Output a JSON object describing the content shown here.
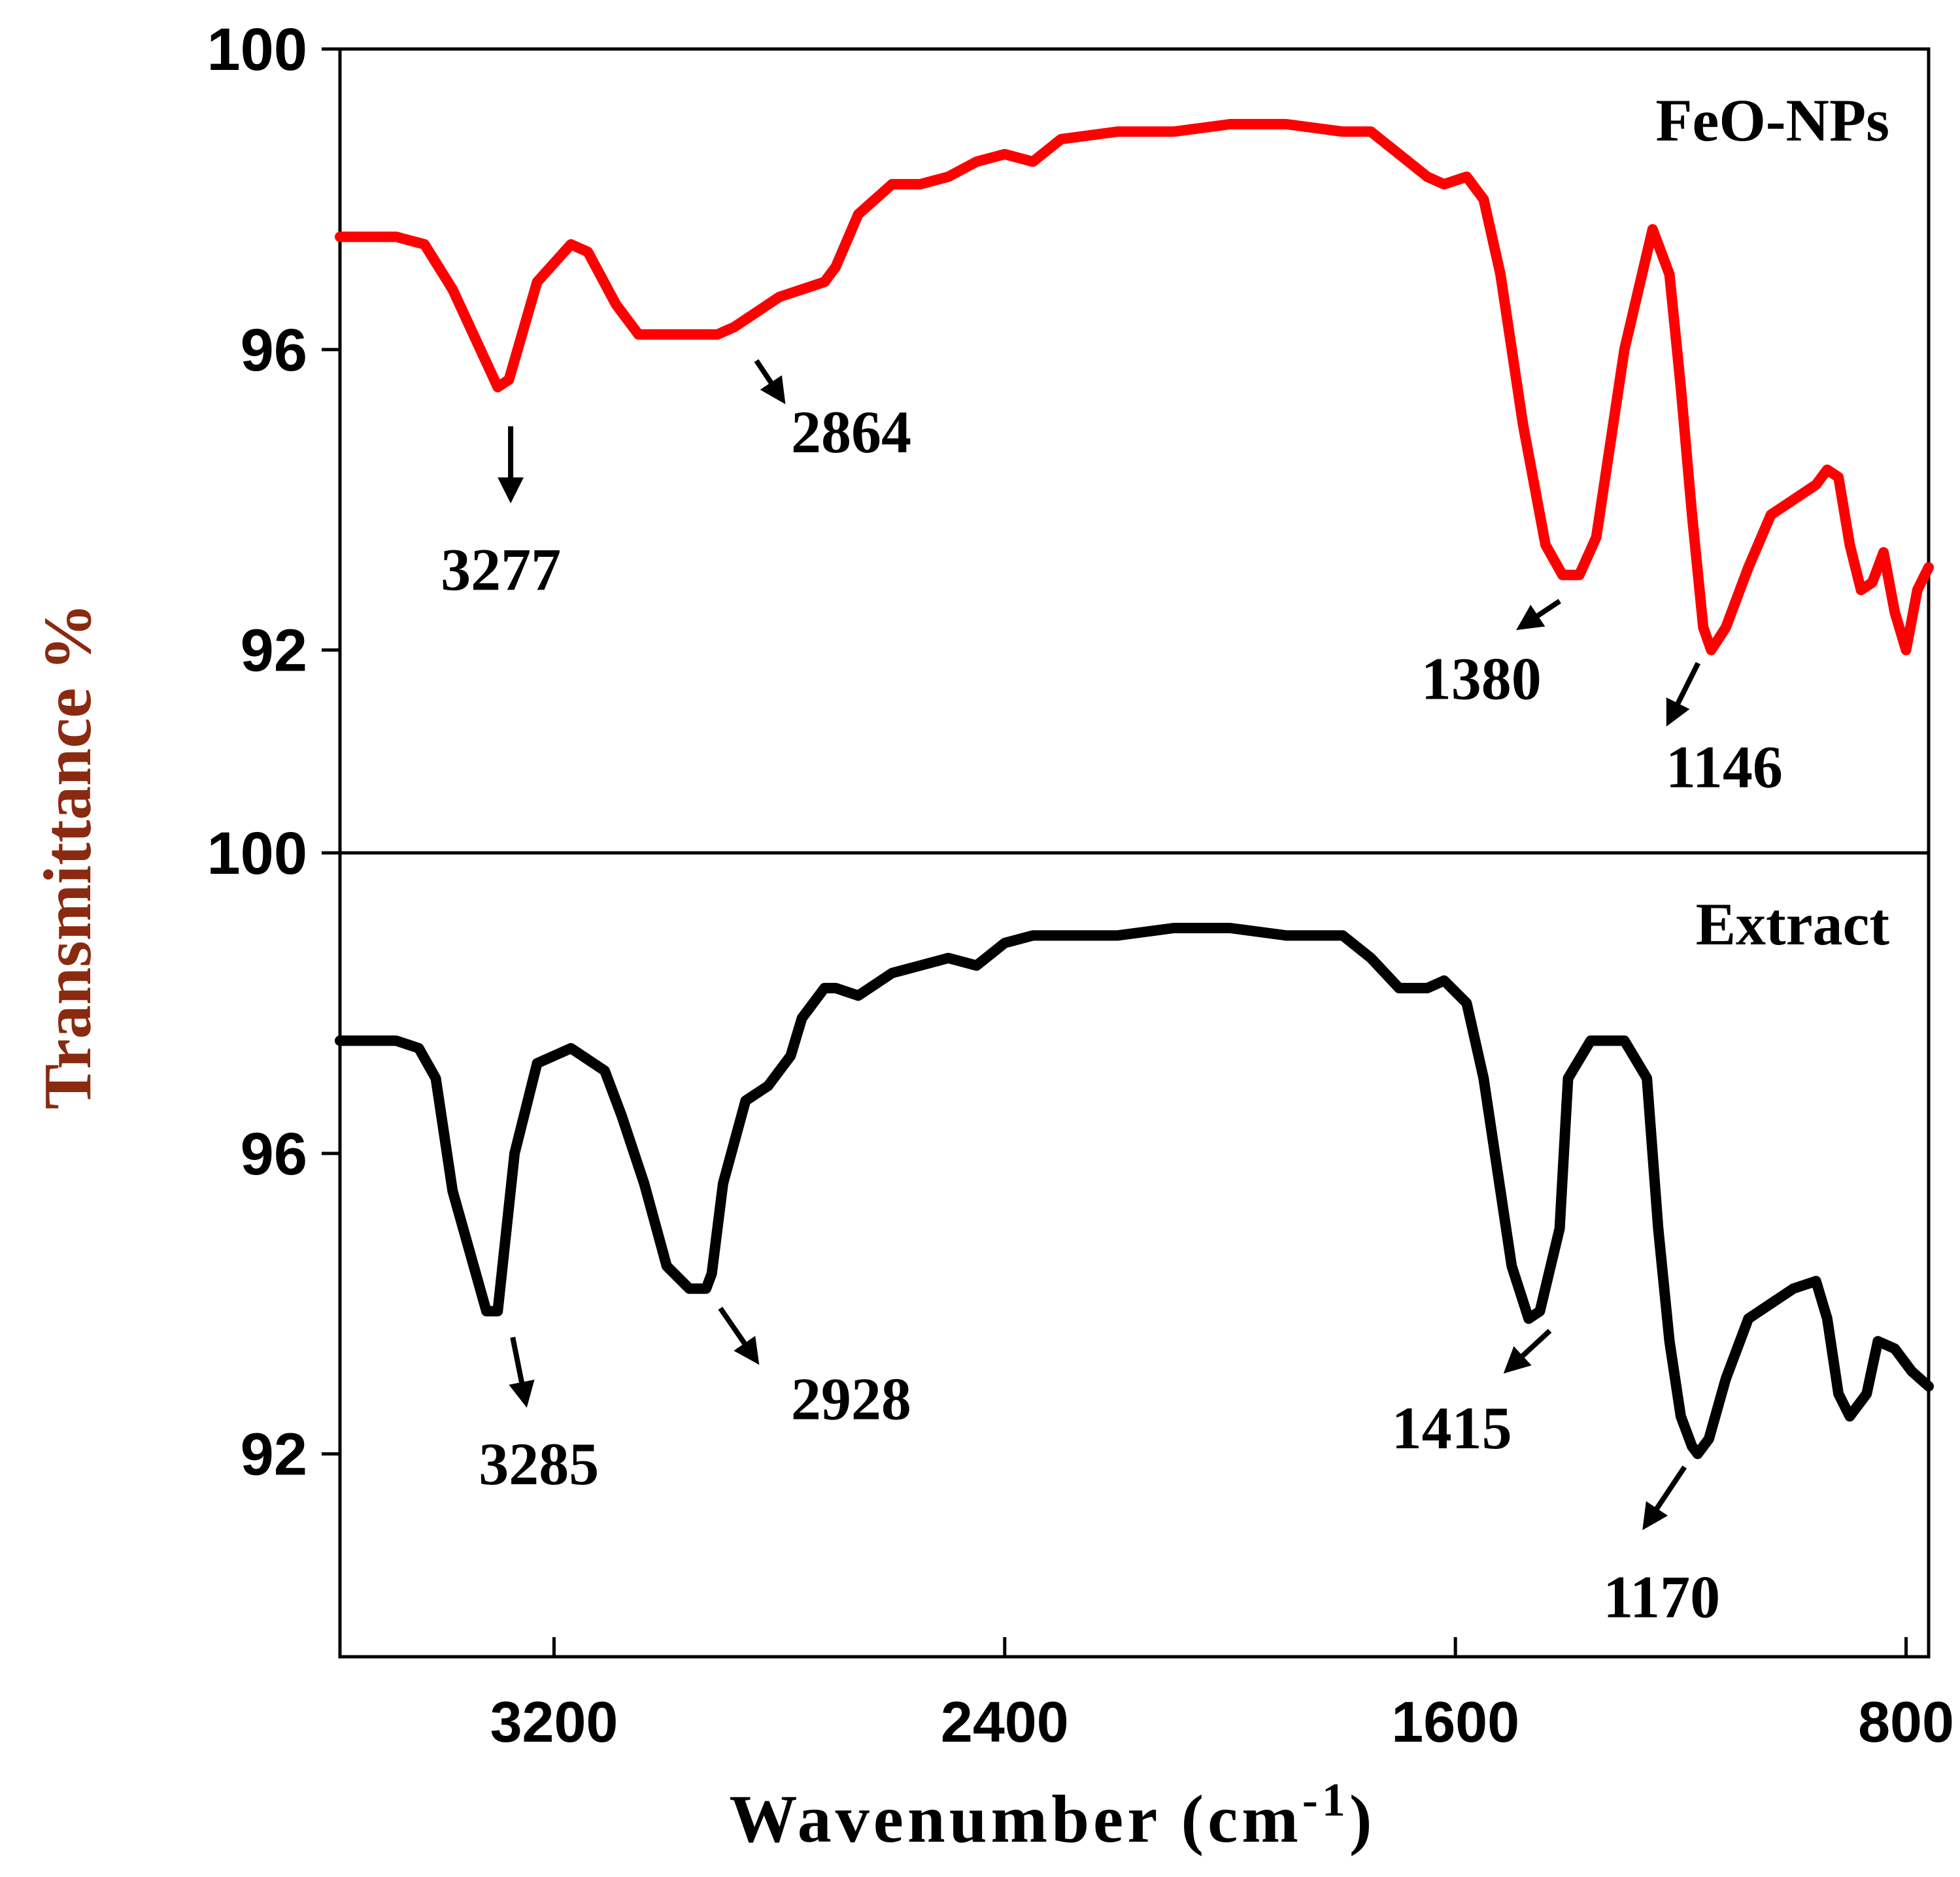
{
  "chart_data": {
    "type": "line",
    "xlabel": "Wavenumber (cm",
    "xlabel_sup": "-1",
    "xlabel_close": ")",
    "ylabel": "Transmittance %",
    "xlim": [
      3580,
      760
    ],
    "x_inverted": true,
    "x_ticks": [
      {
        "value": 3200,
        "label": "3200"
      },
      {
        "value": 2400,
        "label": "2400"
      },
      {
        "value": 1600,
        "label": "1600"
      },
      {
        "value": 800,
        "label": "800"
      }
    ],
    "grid": false,
    "panels": [
      {
        "label": "FeO-NPs",
        "color": "#ff0000",
        "ylim": [
          89.3,
          100
        ],
        "y_ticks": [
          {
            "value": 100,
            "label": "100"
          },
          {
            "value": 96,
            "label": "96"
          },
          {
            "value": 92,
            "label": "92"
          }
        ],
        "x": [
          3580,
          3480,
          3430,
          3380,
          3300,
          3280,
          3230,
          3170,
          3140,
          3090,
          3050,
          3000,
          2950,
          2910,
          2880,
          2860,
          2800,
          2760,
          2720,
          2700,
          2660,
          2600,
          2550,
          2500,
          2450,
          2400,
          2350,
          2300,
          2200,
          2100,
          2000,
          1900,
          1800,
          1750,
          1700,
          1650,
          1620,
          1580,
          1550,
          1520,
          1480,
          1440,
          1410,
          1380,
          1350,
          1300,
          1250,
          1220,
          1200,
          1180,
          1160,
          1146,
          1120,
          1080,
          1040,
          1000,
          960,
          940,
          920,
          900,
          880,
          860,
          840,
          820,
          800,
          780,
          760
        ],
        "y": [
          97.5,
          97.5,
          97.4,
          96.8,
          95.5,
          95.6,
          96.9,
          97.4,
          97.3,
          96.6,
          96.2,
          96.2,
          96.2,
          96.2,
          96.3,
          96.4,
          96.7,
          96.8,
          96.9,
          97.1,
          97.8,
          98.2,
          98.2,
          98.3,
          98.5,
          98.6,
          98.5,
          98.8,
          98.9,
          98.9,
          99.0,
          99.0,
          98.9,
          98.9,
          98.6,
          98.3,
          98.2,
          98.3,
          98.0,
          97.0,
          95.0,
          93.4,
          93.0,
          93.0,
          93.5,
          96.0,
          97.6,
          97.0,
          95.5,
          93.8,
          92.3,
          92.0,
          92.3,
          93.1,
          93.8,
          94.0,
          94.2,
          94.4,
          94.3,
          93.4,
          92.8,
          92.9,
          93.3,
          92.5,
          92.0,
          92.8,
          93.1
        ]
      },
      {
        "label": "Extract",
        "color": "#000000",
        "ylim": [
          89.3,
          100
        ],
        "y_ticks": [
          {
            "value": 100,
            "label": "100"
          },
          {
            "value": 96,
            "label": "96"
          },
          {
            "value": 92,
            "label": "92"
          }
        ],
        "x": [
          3580,
          3480,
          3440,
          3410,
          3380,
          3320,
          3300,
          3270,
          3230,
          3170,
          3110,
          3080,
          3040,
          3000,
          2960,
          2930,
          2920,
          2900,
          2860,
          2820,
          2780,
          2760,
          2720,
          2700,
          2660,
          2600,
          2550,
          2500,
          2450,
          2400,
          2350,
          2300,
          2200,
          2100,
          2000,
          1900,
          1800,
          1750,
          1700,
          1650,
          1620,
          1580,
          1550,
          1520,
          1500,
          1470,
          1450,
          1415,
          1400,
          1360,
          1330,
          1300,
          1260,
          1240,
          1220,
          1200,
          1180,
          1170,
          1150,
          1120,
          1080,
          1040,
          1000,
          960,
          940,
          920,
          900,
          870,
          850,
          820,
          790,
          760
        ],
        "y": [
          97.5,
          97.5,
          97.4,
          97.0,
          95.5,
          93.9,
          93.9,
          96.0,
          97.2,
          97.4,
          97.1,
          96.5,
          95.6,
          94.5,
          94.2,
          94.2,
          94.4,
          95.6,
          96.7,
          96.9,
          97.3,
          97.8,
          98.2,
          98.2,
          98.1,
          98.4,
          98.5,
          98.6,
          98.5,
          98.8,
          98.9,
          98.9,
          98.9,
          99.0,
          99.0,
          98.9,
          98.9,
          98.6,
          98.2,
          98.2,
          98.3,
          98.0,
          97.0,
          95.5,
          94.5,
          93.8,
          93.9,
          95.0,
          97.0,
          97.5,
          97.5,
          97.5,
          97.0,
          95.0,
          93.5,
          92.5,
          92.1,
          92.0,
          92.2,
          93.0,
          93.8,
          94.0,
          94.2,
          94.3,
          93.8,
          92.8,
          92.5,
          92.8,
          93.5,
          93.4,
          93.1,
          92.9
        ]
      }
    ],
    "annotations": [
      {
        "panel": 0,
        "text": "3277"
      },
      {
        "panel": 0,
        "text": "2864"
      },
      {
        "panel": 0,
        "text": "1380"
      },
      {
        "panel": 0,
        "text": "1146"
      },
      {
        "panel": 1,
        "text": "3285"
      },
      {
        "panel": 1,
        "text": "2928"
      },
      {
        "panel": 1,
        "text": "1415"
      },
      {
        "panel": 1,
        "text": "1170"
      }
    ]
  }
}
